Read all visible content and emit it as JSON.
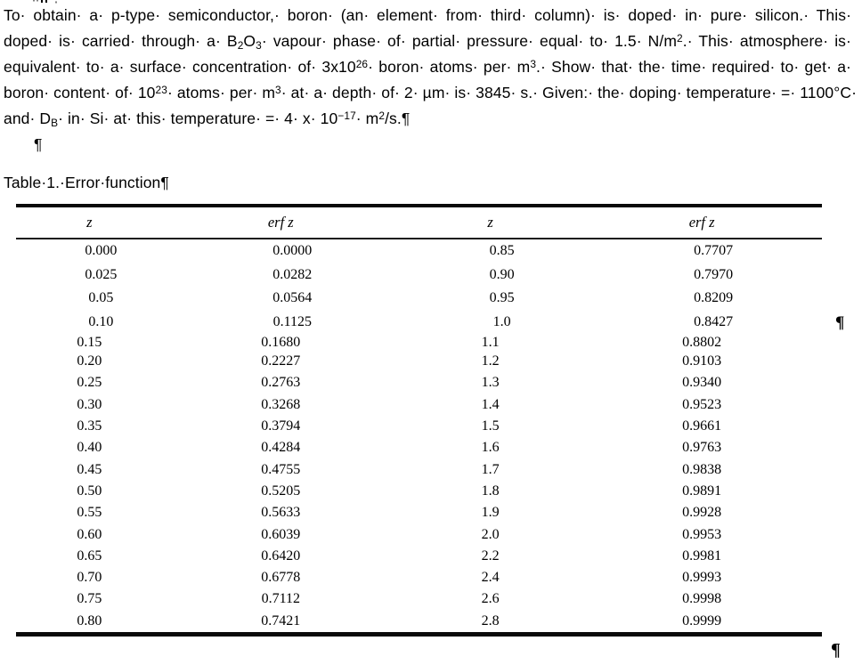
{
  "page": {
    "background": "#ffffff",
    "text_color": "#000000"
  },
  "problem": {
    "lines_html": [
      "To· obtain· a· p-type· semiconductor,· boron· (an· element· from· third· column)· is· doped· in· pure· silicon.· This·",
      "doped· is· carried· through· a· B<sub>2</sub>O<sub>3</sub>· vapour· phase· of· partial· pressure· equal· to· 1.5· N/m<sup>2</sup>.· This· atmosphere· is·",
      "equivalent· to· a· surface· concentration· of· 3x10<sup>26</sup>· boron· atoms· per· m<sup>3</sup>.· Show· that· the· time· required· to· get· a·",
      "boron· content· of· 10<sup>23</sup>· atoms· per· m<sup>3</sup>· at· a· depth· of· 2· µm· is· 3845· s.· Given:· the· doping· temperature· =· 1100°C·",
      "and· D<sub>B</sub>· in· Si· at· this· temperature· =· 4· x· 10<sup>−17</sup>· m<sup>2</sup>/s.¶"
    ],
    "empty_paragraph_mark": "¶"
  },
  "table": {
    "caption_html": "Table·1.·Error·function¶",
    "headers": [
      "z",
      "erf z",
      "z",
      "erf z"
    ],
    "segment_a": [
      [
        "0.000",
        "0.0000",
        "0.85",
        "0.7707"
      ],
      [
        "0.025",
        "0.0282",
        "0.90",
        "0.7970"
      ],
      [
        "0.05",
        "0.0564",
        "0.95",
        "0.8209"
      ],
      [
        "0.10",
        "0.1125",
        "1.0",
        "0.8427"
      ]
    ],
    "segment_b": [
      [
        "0.15",
        "0.1680",
        "1.1",
        "0.8802"
      ],
      [
        "0.20",
        "0.2227",
        "1.2",
        "0.9103"
      ],
      [
        "0.25",
        "0.2763",
        "1.3",
        "0.9340"
      ],
      [
        "0.30",
        "0.3268",
        "1.4",
        "0.9523"
      ],
      [
        "0.35",
        "0.3794",
        "1.5",
        "0.9661"
      ],
      [
        "0.40",
        "0.4284",
        "1.6",
        "0.9763"
      ],
      [
        "0.45",
        "0.4755",
        "1.7",
        "0.9838"
      ],
      [
        "0.50",
        "0.5205",
        "1.8",
        "0.9891"
      ],
      [
        "0.55",
        "0.5633",
        "1.9",
        "0.9928"
      ],
      [
        "0.60",
        "0.6039",
        "2.0",
        "0.9953"
      ],
      [
        "0.65",
        "0.6420",
        "2.2",
        "0.9981"
      ],
      [
        "0.70",
        "0.6778",
        "2.4",
        "0.9993"
      ],
      [
        "0.75",
        "0.7112",
        "2.6",
        "0.9998"
      ],
      [
        "0.80",
        "0.7421",
        "2.8",
        "0.9999"
      ]
    ]
  },
  "marks": {
    "mid_right_pilcrow": "¶",
    "bottom_right_pilcrow": "¶"
  }
}
